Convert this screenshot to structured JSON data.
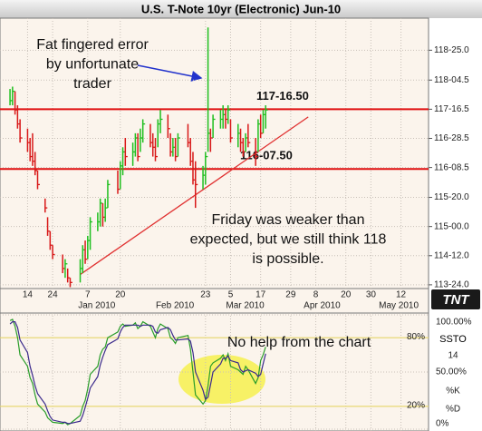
{
  "chart_data": [
    {
      "type": "hlc",
      "title": "U.S. T-Note 10yr (Electronic) Jun-10",
      "x": [
        "2009-12-07",
        "2009-12-08",
        "2009-12-09",
        "2009-12-10",
        "2009-12-11",
        "2009-12-14",
        "2009-12-15",
        "2009-12-16",
        "2009-12-17",
        "2009-12-18",
        "2009-12-21",
        "2009-12-22",
        "2009-12-23",
        "2009-12-24",
        "2009-12-28",
        "2009-12-29",
        "2009-12-30",
        "2009-12-31",
        "2010-01-04",
        "2010-01-05",
        "2010-01-06",
        "2010-01-07",
        "2010-01-08",
        "2010-01-11",
        "2010-01-12",
        "2010-01-13",
        "2010-01-14",
        "2010-01-15",
        "2010-01-19",
        "2010-01-20",
        "2010-01-21",
        "2010-01-22",
        "2010-01-25",
        "2010-01-26",
        "2010-01-27",
        "2010-01-28",
        "2010-01-29",
        "2010-02-01",
        "2010-02-02",
        "2010-02-03",
        "2010-02-04",
        "2010-02-05",
        "2010-02-08",
        "2010-02-09",
        "2010-02-10",
        "2010-02-11",
        "2010-02-12",
        "2010-02-16",
        "2010-02-17",
        "2010-02-18",
        "2010-02-19",
        "2010-02-22",
        "2010-02-23",
        "2010-02-24",
        "2010-02-25",
        "2010-02-26",
        "2010-03-01",
        "2010-03-02",
        "2010-03-03",
        "2010-03-04",
        "2010-03-05",
        "2010-03-08",
        "2010-03-09",
        "2010-03-10",
        "2010-03-11",
        "2010-03-12",
        "2010-03-15",
        "2010-03-16",
        "2010-03-17",
        "2010-03-18",
        "2010-03-19"
      ],
      "high": [
        117.95,
        118.0,
        117.9,
        117.6,
        117.3,
        117.1,
        116.9,
        117.0,
        116.6,
        116.2,
        115.6,
        115.2,
        114.9,
        114.6,
        114.4,
        114.3,
        114.1,
        113.9,
        114.3,
        114.6,
        114.7,
        114.8,
        115.2,
        115.3,
        115.6,
        115.5,
        115.6,
        116.0,
        116.2,
        116.4,
        116.7,
        116.9,
        116.8,
        117.0,
        117.0,
        117.1,
        117.3,
        117.2,
        117.0,
        116.9,
        117.3,
        117.5,
        117.4,
        117.0,
        116.9,
        116.9,
        117.0,
        117.2,
        116.9,
        116.6,
        116.4,
        116.3,
        116.6,
        119.27,
        117.1,
        117.4,
        117.5,
        117.6,
        117.5,
        117.6,
        117.3,
        117.2,
        117.1,
        116.9,
        117.0,
        117.2,
        116.9,
        117.3,
        117.4,
        117.5,
        117.6
      ],
      "low": [
        117.6,
        117.6,
        117.4,
        117.1,
        116.8,
        116.6,
        116.4,
        116.3,
        116.1,
        115.8,
        115.3,
        114.8,
        114.5,
        114.3,
        114.0,
        113.9,
        113.8,
        113.7,
        113.8,
        114.0,
        114.2,
        114.3,
        114.5,
        114.9,
        115.0,
        115.0,
        115.1,
        115.4,
        115.7,
        115.8,
        116.1,
        116.3,
        116.3,
        116.5,
        116.4,
        116.6,
        116.8,
        116.7,
        116.5,
        116.4,
        116.7,
        117.0,
        116.9,
        116.5,
        116.5,
        116.4,
        116.5,
        116.7,
        116.3,
        115.9,
        115.4,
        115.8,
        115.9,
        116.6,
        116.6,
        116.9,
        117.1,
        117.1,
        117.1,
        117.2,
        116.8,
        116.7,
        116.6,
        116.5,
        116.6,
        116.7,
        116.3,
        116.6,
        116.9,
        117.0,
        117.1
      ],
      "close": [
        117.7,
        117.9,
        117.5,
        117.2,
        116.9,
        116.8,
        116.5,
        116.4,
        116.2,
        115.9,
        115.4,
        114.9,
        114.6,
        114.4,
        114.1,
        114.2,
        113.9,
        113.8,
        114.1,
        114.5,
        114.3,
        114.7,
        115.1,
        115.1,
        115.5,
        115.2,
        115.4,
        115.9,
        115.8,
        116.3,
        116.6,
        116.5,
        116.6,
        116.9,
        116.5,
        116.9,
        117.2,
        116.8,
        116.7,
        116.5,
        117.2,
        117.3,
        117.1,
        116.6,
        116.7,
        116.5,
        116.9,
        116.8,
        116.4,
        116.0,
        115.9,
        116.1,
        116.5,
        117.0,
        116.9,
        117.3,
        117.3,
        117.4,
        117.3,
        117.5,
        116.9,
        117.0,
        116.8,
        116.6,
        116.9,
        116.8,
        116.5,
        117.2,
        117.0,
        117.4,
        117.5
      ],
      "up_color": "#1fbf1f",
      "down_color": "#d81818",
      "xlim": [
        "2009-12-03",
        "2010-05-23"
      ],
      "xticks": [
        {
          "value": "2009-12-14",
          "label": "14"
        },
        {
          "value": "2009-12-24",
          "label": "24"
        },
        {
          "value": "2010-01-07",
          "label": "7"
        },
        {
          "value": "2010-01-20",
          "label": "20"
        },
        {
          "value": "2010-02-23",
          "label": "23"
        },
        {
          "value": "2010-03-05",
          "label": "5"
        },
        {
          "value": "2010-03-17",
          "label": "17"
        },
        {
          "value": "2010-03-29",
          "label": "29"
        },
        {
          "value": "2010-04-08",
          "label": "8"
        },
        {
          "value": "2010-04-20",
          "label": "20"
        },
        {
          "value": "2010-04-30",
          "label": "30"
        },
        {
          "value": "2010-05-12",
          "label": "12"
        }
      ],
      "month_ticks": [
        {
          "value": "2010-01-01",
          "label": "Jan 2010"
        },
        {
          "value": "2010-02-01",
          "label": "Feb 2010"
        },
        {
          "value": "2010-03-01",
          "label": "Mar 2010"
        },
        {
          "value": "2010-04-01",
          "label": "Apr 2010"
        },
        {
          "value": "2010-05-01",
          "label": "May 2010"
        }
      ],
      "ylim": [
        113.67,
        119.43
      ],
      "yticks": [
        {
          "value": 118.78125,
          "label": "118-25.0"
        },
        {
          "value": 118.140625,
          "label": "118-04.5"
        },
        {
          "value": 117.515625,
          "label": "117-16.5"
        },
        {
          "value": 116.890625,
          "label": "116-28.5"
        },
        {
          "value": 116.265625,
          "label": "116-08.5"
        },
        {
          "value": 115.625,
          "label": "115-20.0"
        },
        {
          "value": 115.0,
          "label": "115-00.0"
        },
        {
          "value": 114.375,
          "label": "114-12.0"
        },
        {
          "value": 113.75,
          "label": "113-24.0"
        }
      ],
      "grid": true,
      "levels": [
        {
          "value": 117.515625,
          "label": "117-16.50",
          "color": "#e01010"
        },
        {
          "value": 116.234375,
          "label": "116-07.50",
          "color": "#e01010"
        }
      ],
      "trendline": {
        "x": [
          "2010-01-04",
          "2010-04-05"
        ],
        "y": [
          113.97,
          117.35
        ],
        "color": "#e03030"
      },
      "annotations": [
        [
          "Fat fingered error",
          "by unfortunate",
          "trader"
        ],
        [
          "Friday was weaker than",
          "expected, but we still think 118",
          "is possible."
        ]
      ],
      "logo": "TNT"
    },
    {
      "type": "line",
      "title": "SSTO",
      "period": 14,
      "ylim": [
        0,
        100
      ],
      "yticks": [
        {
          "value": 100,
          "label": "100.00%"
        },
        {
          "value": 50,
          "label": "50.00%"
        },
        {
          "value": 0,
          "label": "0%"
        }
      ],
      "levels": [
        {
          "value": 80,
          "label": "80%",
          "color": "#e6d66a"
        },
        {
          "value": 20,
          "label": "20%",
          "color": "#e6d66a"
        }
      ],
      "series": [
        {
          "name": "%K",
          "color": "#2a9d2a",
          "values": [
            95,
            96,
            90,
            80,
            65,
            55,
            45,
            40,
            30,
            22,
            15,
            10,
            8,
            6,
            5,
            6,
            4,
            5,
            12,
            20,
            25,
            35,
            48,
            55,
            65,
            70,
            72,
            80,
            85,
            90,
            92,
            90,
            91,
            93,
            88,
            90,
            94,
            90,
            85,
            80,
            88,
            92,
            88,
            80,
            78,
            75,
            80,
            82,
            70,
            50,
            30,
            22,
            25,
            38,
            55,
            58,
            62,
            65,
            60,
            66,
            55,
            52,
            50,
            48,
            55,
            52,
            40,
            45,
            60,
            65,
            72
          ]
        },
        {
          "name": "%D",
          "color": "#3b2a8c",
          "values": [
            92,
            94,
            94,
            89,
            78,
            67,
            55,
            47,
            38,
            31,
            22,
            16,
            11,
            8,
            6,
            6,
            5,
            5,
            7,
            12,
            19,
            27,
            36,
            46,
            56,
            63,
            69,
            74,
            79,
            85,
            89,
            91,
            91,
            91,
            91,
            90,
            91,
            91,
            90,
            85,
            84,
            87,
            89,
            87,
            82,
            78,
            78,
            79,
            77,
            67,
            50,
            34,
            26,
            28,
            39,
            50,
            57,
            62,
            62,
            64,
            60,
            58,
            52,
            50,
            51,
            52,
            49,
            46,
            48,
            57,
            66
          ]
        }
      ],
      "annotation": "No help from the chart"
    }
  ]
}
